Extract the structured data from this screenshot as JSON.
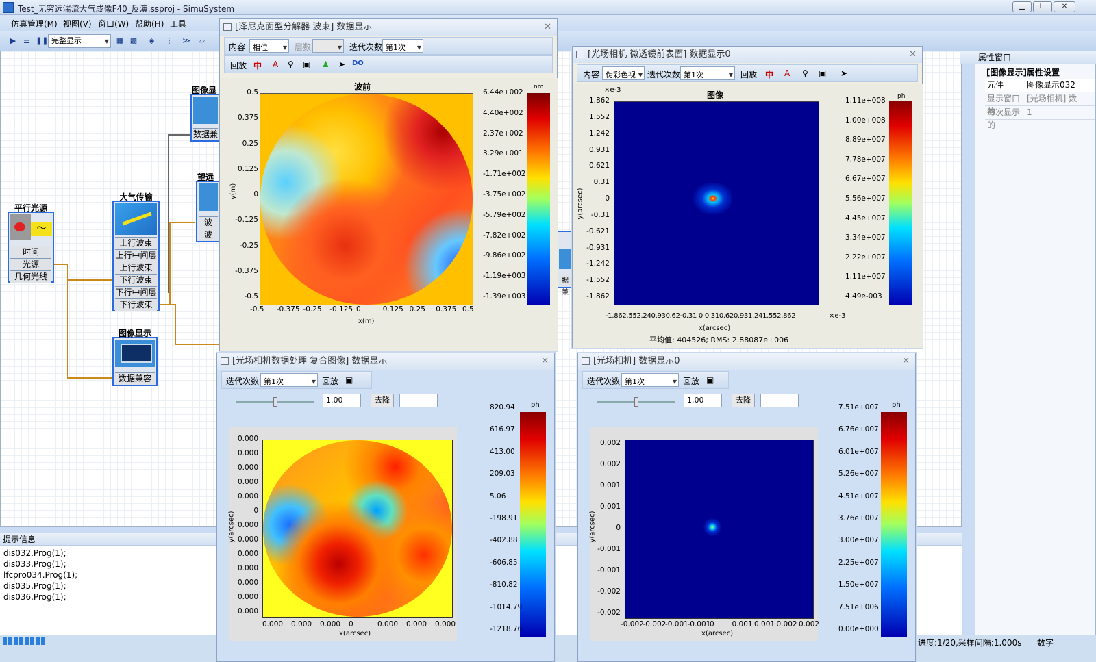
{
  "app": {
    "title": "Test_无穷远湍流大气成像F40_反演.ssproj - SimuSystem",
    "min": "▁",
    "max": "❐",
    "close": "✕"
  },
  "menu": [
    "仿真管理(M)",
    "视图(V)",
    "窗口(W)",
    "帮助(H)",
    "工具"
  ],
  "toolbar": {
    "display_mode": "完整显示"
  },
  "nodes": {
    "parallel_light": {
      "label": "平行光源",
      "rows": [
        "时间",
        "光源",
        "几何光线"
      ]
    },
    "atmosphere": {
      "label": "大气传输",
      "rows": [
        "上行波束",
        "上行中间层",
        "上行波束",
        "下行波束",
        "下行中间层",
        "下行波束"
      ]
    },
    "image_disp1": {
      "label": "图像显",
      "row": "数据兼"
    },
    "image_disp2": {
      "label": "图像显示",
      "row": "数据兼容"
    },
    "lens_partial": {
      "label": "望远",
      "rows": [
        "波",
        "波"
      ]
    },
    "partial_disp_row": "数据兼容",
    "partial_disp2": {
      "label": "像显",
      "row": "据兼"
    }
  },
  "win_zernike": {
    "title": "[泽尼克面型分解器 波束] 数据显示",
    "content_label": "内容",
    "content_value": "相位",
    "layer_label": "层数",
    "iter_label": "迭代次数",
    "iter_value": "第1次",
    "playback": "回放",
    "do_label": "DO",
    "plot_title": "波前",
    "xlabel": "x(m)",
    "ylabel": "y(m)",
    "unit": "nm",
    "yticks": [
      "0.5",
      "0.375",
      "0.25",
      "0.125",
      "0",
      "-0.125",
      "-0.25",
      "-0.375",
      "-0.5"
    ],
    "xticks": [
      "-0.5",
      "-0.375",
      "-0.25",
      "-0.125",
      "0",
      "0.125",
      "0.25",
      "0.375",
      "0.5"
    ],
    "cbar": [
      "6.44e+002",
      "4.40e+002",
      "2.37e+002",
      "3.29e+001",
      "-1.71e+002",
      "-3.75e+002",
      "-5.79e+002",
      "-7.82e+002",
      "-9.86e+002",
      "-1.19e+003",
      "-1.39e+003"
    ]
  },
  "win_lf_front": {
    "title": "[光场相机 微透镜前表面] 数据显示0",
    "content_label": "内容",
    "content_value": "伪彩色视",
    "iter_label": "迭代次数",
    "iter_value": "第1次",
    "playback": "回放",
    "plot_title": "图像",
    "exp": "×e-3",
    "xlabel": "x(arcsec)",
    "ylabel": "y(arcsec)",
    "unit": "ph",
    "yticks": [
      "1.862",
      "1.552",
      "1.242",
      "0.931",
      "0.621",
      "0.31",
      "0",
      "-0.31",
      "-0.621",
      "-0.931",
      "-1.242",
      "-1.552",
      "-1.862"
    ],
    "xticks": "-1.862.552.240.930.62-0.31  0  0.310.620.931.241.552.862",
    "xexp": "×e-3",
    "cbar": [
      "1.11e+008",
      "1.00e+008",
      "8.89e+007",
      "7.78e+007",
      "6.67e+007",
      "5.56e+007",
      "4.45e+007",
      "3.34e+007",
      "2.22e+007",
      "1.11e+007",
      "4.49e-003"
    ],
    "stats": "平均值: 404526;  RMS: 2.88087e+006"
  },
  "win_lf_proc": {
    "title": "[光场相机数据处理 复合图像] 数据显示",
    "iter_label": "迭代次数",
    "iter_value": "第1次",
    "playback": "回放",
    "slider_value": "1.00",
    "denoise": "去降",
    "xlabel": "x(arcsec)",
    "ylabel": "y(arcsec)",
    "unit": "ph",
    "yticks": [
      "0.000",
      "0.000",
      "0.000",
      "0.000",
      "0.000",
      "0",
      "0.000",
      "0.000",
      "0.000",
      "0.000",
      "0.000",
      "0.000",
      "0.000"
    ],
    "xticks": [
      "0.000",
      "0.000",
      "0.000",
      "0",
      "0.000",
      "0.000",
      "0.000"
    ],
    "cbar": [
      "820.94",
      "616.97",
      "413.00",
      "209.03",
      "5.06",
      "-198.91",
      "-402.88",
      "-606.85",
      "-810.82",
      "-1014.79",
      "-1218.76"
    ]
  },
  "win_lf": {
    "title": "[光场相机] 数据显示0",
    "iter_label": "迭代次数",
    "iter_value": "第1次",
    "playback": "回放",
    "slider_value": "1.00",
    "denoise": "去降",
    "xlabel": "x(arcsec)",
    "ylabel": "y(arcsec)",
    "unit": "ph",
    "yticks": [
      "0.002",
      "0.002",
      "0.001",
      "0.001",
      "0",
      "-0.001",
      "-0.001",
      "-0.002",
      "-0.002"
    ],
    "xticks": [
      "-0.002",
      "-0.002",
      "-0.001",
      "-0.001",
      "0",
      "0.001",
      "0.001",
      "0.002",
      "0.002"
    ],
    "cbar": [
      "7.51e+007",
      "6.76e+007",
      "6.01e+007",
      "5.26e+007",
      "4.51e+007",
      "3.76e+007",
      "3.00e+007",
      "2.25e+007",
      "1.50e+007",
      "7.51e+006",
      "0.00e+000"
    ]
  },
  "props": {
    "title": "属性窗口",
    "section": "[图像显示]属性设置",
    "rows": [
      [
        "元件",
        "图像显示032"
      ],
      [
        "显示窗口的",
        "[光场相机] 数"
      ],
      [
        "每次显示的",
        "1"
      ]
    ]
  },
  "info": {
    "title": "提示信息",
    "lines": [
      "dis032.Prog(1);",
      "dis033.Prog(1);",
      "lfcpro034.Prog(1);",
      "dis035.Prog(1);",
      "dis036.Prog(1);"
    ]
  },
  "status": {
    "progress": "进度:1/20,采样间隔:1.000s",
    "mode": "数字"
  }
}
